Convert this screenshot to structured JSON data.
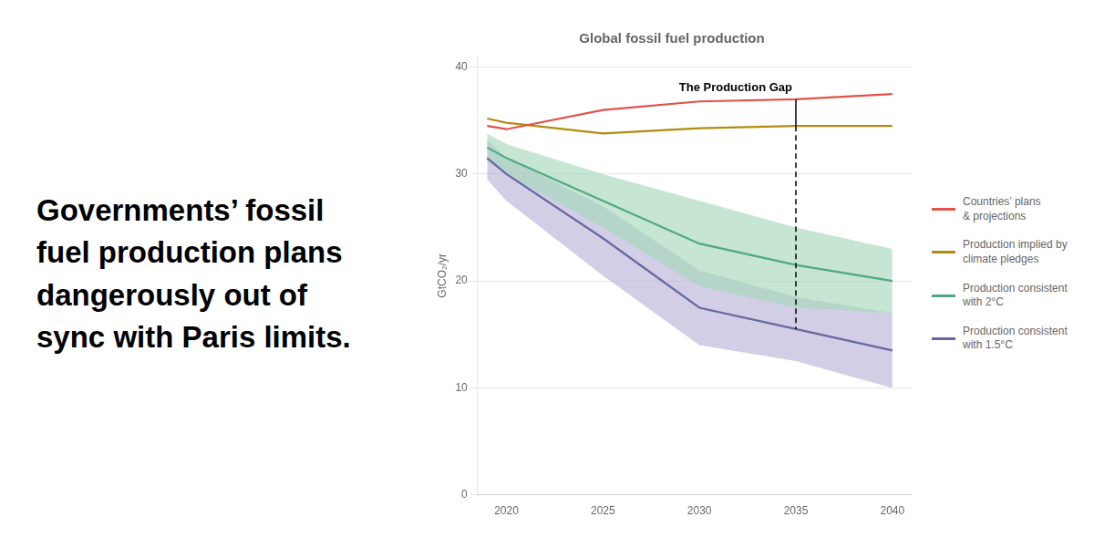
{
  "chart_data": {
    "type": "line",
    "title": "Global fossil fuel production",
    "subtitle": "Governments’ fossil\nfuel production plans\ndangerously out of\nsync with Paris limits.",
    "ylabel": "GtCO₂/yr",
    "x": [
      2019,
      2020,
      2025,
      2030,
      2035,
      2040
    ],
    "series": [
      {
        "name": "Countries’ plans\n& projections",
        "color": "#e0524a",
        "values": [
          34.5,
          34.2,
          36.0,
          36.8,
          37.0,
          37.5
        ]
      },
      {
        "name": "Production implied by\nclimate pledges",
        "color": "#b08c10",
        "values": [
          35.2,
          34.8,
          33.8,
          34.3,
          34.5,
          34.5
        ]
      },
      {
        "name": "Production consistent\nwith 2°C",
        "color": "#52a882",
        "values": [
          32.5,
          31.5,
          27.5,
          23.5,
          21.5,
          20.0
        ],
        "band": {
          "upper": [
            33.8,
            32.8,
            30.0,
            27.5,
            25.0,
            23.0
          ],
          "lower": [
            31.2,
            30.0,
            25.0,
            19.5,
            17.5,
            17.0
          ],
          "color": "#a8d8bc"
        }
      },
      {
        "name": "Production consistent\nwith 1.5°C",
        "color": "#6868a0",
        "values": [
          31.5,
          30.0,
          24.0,
          17.5,
          15.5,
          13.5
        ],
        "band": {
          "upper": [
            33.2,
            31.5,
            27.0,
            21.0,
            18.5,
            17.0
          ],
          "lower": [
            29.5,
            27.5,
            20.5,
            14.0,
            12.5,
            10.0
          ],
          "color": "#b8b4d8"
        }
      }
    ],
    "annotations": [
      {
        "text": "The Production Gap",
        "x": 2035,
        "segments": [
          {
            "from": 37.0,
            "to": 34.5,
            "line_style": "solid"
          },
          {
            "from": 34.5,
            "to": 15.5,
            "line_style": "dashed"
          }
        ]
      }
    ],
    "xlim": [
      2018.5,
      2041
    ],
    "xticks": [
      2020,
      2025,
      2030,
      2035,
      2040
    ],
    "ylim": [
      0,
      41
    ],
    "yticks": [
      0,
      10,
      20,
      30,
      40
    ],
    "grid": "y",
    "legend": "right"
  }
}
